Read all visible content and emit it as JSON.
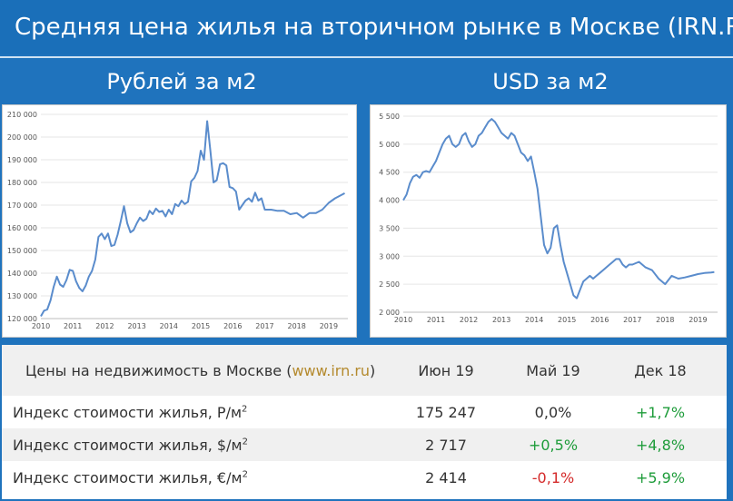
{
  "header": {
    "title": "Средняя цена жилья на вторичном рынке в Москве (IRN.RU)"
  },
  "subheads": {
    "left": "Рублей за м2",
    "right": "USD за м2"
  },
  "chart_data": [
    {
      "type": "line",
      "title": "Рублей за м2",
      "xlabel": "",
      "ylabel": "",
      "xlim": [
        2010,
        2019.6
      ],
      "ylim": [
        120000,
        210000
      ],
      "ytick_labels": [
        "120 000",
        "130 000",
        "140 000",
        "150 000",
        "160 000",
        "170 000",
        "180 000",
        "190 000",
        "200 000",
        "210 000"
      ],
      "yticks": [
        120000,
        130000,
        140000,
        150000,
        160000,
        170000,
        180000,
        190000,
        200000,
        210000
      ],
      "xtick_labels": [
        "2010",
        "2011",
        "2012",
        "2013",
        "2014",
        "2015",
        "2016",
        "2017",
        "2018",
        "2019"
      ],
      "xticks": [
        2010,
        2011,
        2012,
        2013,
        2014,
        2015,
        2016,
        2017,
        2018,
        2019
      ],
      "grid": "horizontal",
      "color": "#5a8ccc",
      "series": [
        {
          "x": [
            2010.0,
            2010.1,
            2010.2,
            2010.3,
            2010.4,
            2010.5,
            2010.6,
            2010.7,
            2010.8,
            2010.9,
            2011.0,
            2011.1,
            2011.2,
            2011.3,
            2011.4,
            2011.5,
            2011.6,
            2011.7,
            2011.8,
            2011.9,
            2012.0,
            2012.1,
            2012.2,
            2012.3,
            2012.4,
            2012.5,
            2012.6,
            2012.7,
            2012.8,
            2012.9,
            2013.0,
            2013.1,
            2013.2,
            2013.3,
            2013.4,
            2013.5,
            2013.6,
            2013.7,
            2013.8,
            2013.9,
            2014.0,
            2014.1,
            2014.2,
            2014.3,
            2014.4,
            2014.5,
            2014.6,
            2014.7,
            2014.8,
            2014.9,
            2015.0,
            2015.1,
            2015.2,
            2015.3,
            2015.4,
            2015.5,
            2015.6,
            2015.7,
            2015.8,
            2015.9,
            2016.0,
            2016.1,
            2016.2,
            2016.3,
            2016.4,
            2016.5,
            2016.6,
            2016.7,
            2016.8,
            2016.9,
            2017.0,
            2017.2,
            2017.4,
            2017.6,
            2017.8,
            2018.0,
            2018.2,
            2018.4,
            2018.6,
            2018.8,
            2019.0,
            2019.2,
            2019.4,
            2019.5
          ],
          "y": [
            121000,
            123500,
            124000,
            128000,
            134000,
            138500,
            135000,
            134000,
            137000,
            141500,
            141000,
            136500,
            133500,
            132000,
            134500,
            138500,
            141000,
            146000,
            156000,
            157500,
            155000,
            157500,
            152000,
            152500,
            157000,
            163000,
            169500,
            162000,
            158000,
            159000,
            162000,
            164500,
            163000,
            164000,
            167500,
            166000,
            168500,
            167000,
            167500,
            165000,
            168000,
            166000,
            170500,
            169500,
            172000,
            170500,
            171500,
            180500,
            182000,
            185000,
            194000,
            190000,
            207000,
            194000,
            180000,
            181000,
            188000,
            188500,
            187500,
            178000,
            177500,
            176000,
            168000,
            170000,
            172000,
            173000,
            171500,
            175500,
            172000,
            173000,
            168000,
            168000,
            167500,
            167500,
            166000,
            166500,
            164500,
            166500,
            166500,
            168000,
            171000,
            173000,
            174500,
            175247
          ]
        }
      ]
    },
    {
      "type": "line",
      "title": "USD за м2",
      "xlabel": "",
      "ylabel": "",
      "xlim": [
        2010,
        2019.6
      ],
      "ylim": [
        2000,
        5500
      ],
      "ytick_labels": [
        "2 000",
        "2 500",
        "3 000",
        "3 500",
        "4 000",
        "4 500",
        "5 000",
        "5 500"
      ],
      "yticks": [
        2000,
        2500,
        3000,
        3500,
        4000,
        4500,
        5000,
        5500
      ],
      "xtick_labels": [
        "2010",
        "2011",
        "2012",
        "2013",
        "2014",
        "2015",
        "2016",
        "2017",
        "2018",
        "2019"
      ],
      "xticks": [
        2010,
        2011,
        2012,
        2013,
        2014,
        2015,
        2016,
        2017,
        2018,
        2019
      ],
      "grid": "horizontal",
      "color": "#5a8ccc",
      "series": [
        {
          "x": [
            2010.0,
            2010.1,
            2010.2,
            2010.3,
            2010.4,
            2010.5,
            2010.6,
            2010.7,
            2010.8,
            2010.9,
            2011.0,
            2011.1,
            2011.2,
            2011.3,
            2011.4,
            2011.5,
            2011.6,
            2011.7,
            2011.8,
            2011.9,
            2012.0,
            2012.1,
            2012.2,
            2012.3,
            2012.4,
            2012.5,
            2012.6,
            2012.7,
            2012.8,
            2012.9,
            2013.0,
            2013.1,
            2013.2,
            2013.3,
            2013.4,
            2013.5,
            2013.6,
            2013.7,
            2013.8,
            2013.9,
            2014.0,
            2014.1,
            2014.2,
            2014.3,
            2014.4,
            2014.5,
            2014.6,
            2014.7,
            2014.8,
            2014.9,
            2015.0,
            2015.1,
            2015.2,
            2015.3,
            2015.4,
            2015.5,
            2015.6,
            2015.7,
            2015.8,
            2015.9,
            2016.0,
            2016.1,
            2016.2,
            2016.3,
            2016.4,
            2016.5,
            2016.6,
            2016.7,
            2016.8,
            2016.9,
            2017.0,
            2017.2,
            2017.4,
            2017.6,
            2017.8,
            2018.0,
            2018.2,
            2018.4,
            2018.6,
            2018.8,
            2019.0,
            2019.2,
            2019.4,
            2019.5
          ],
          "y": [
            4000,
            4100,
            4300,
            4420,
            4450,
            4400,
            4500,
            4520,
            4500,
            4600,
            4700,
            4850,
            5000,
            5100,
            5150,
            5000,
            4950,
            5000,
            5150,
            5200,
            5050,
            4950,
            5000,
            5150,
            5200,
            5300,
            5400,
            5450,
            5400,
            5300,
            5200,
            5150,
            5100,
            5200,
            5150,
            5000,
            4850,
            4800,
            4700,
            4780,
            4500,
            4200,
            3700,
            3200,
            3050,
            3150,
            3500,
            3550,
            3200,
            2900,
            2700,
            2500,
            2300,
            2250,
            2400,
            2550,
            2600,
            2650,
            2600,
            2650,
            2700,
            2750,
            2800,
            2850,
            2900,
            2950,
            2950,
            2850,
            2800,
            2850,
            2850,
            2900,
            2800,
            2750,
            2600,
            2500,
            2650,
            2600,
            2620,
            2650,
            2680,
            2700,
            2710,
            2717
          ]
        }
      ]
    }
  ],
  "table": {
    "header": {
      "label_prefix": "Цены на недвижимость в Москве (",
      "link": "www.irn.ru",
      "label_suffix": ")",
      "col1": "Июн 19",
      "col2": "Май 19",
      "col3": "Дек 18"
    },
    "rows": [
      {
        "label": "Индекс стоимости жилья, Р/м",
        "sup": "2",
        "v1": "175 247",
        "v2": "0,0%",
        "v3": "+1,7%",
        "v2_sign": "neutral",
        "v3_sign": "pos"
      },
      {
        "label": "Индекс стоимости жилья, $/м",
        "sup": "2",
        "v1": "2 717",
        "v2": "+0,5%",
        "v3": "+4,8%",
        "v2_sign": "pos",
        "v3_sign": "pos"
      },
      {
        "label": "Индекс стоимости жилья, €/м",
        "sup": "2",
        "v1": "2 414",
        "v2": "-0,1%",
        "v3": "+5,9%",
        "v2_sign": "neg",
        "v3_sign": "pos"
      }
    ]
  },
  "colors": {
    "background": "#1f73bd",
    "line": "#5a8ccc",
    "positive": "#1e9c3a",
    "negative": "#d42a2a",
    "link": "#b48a2e"
  }
}
